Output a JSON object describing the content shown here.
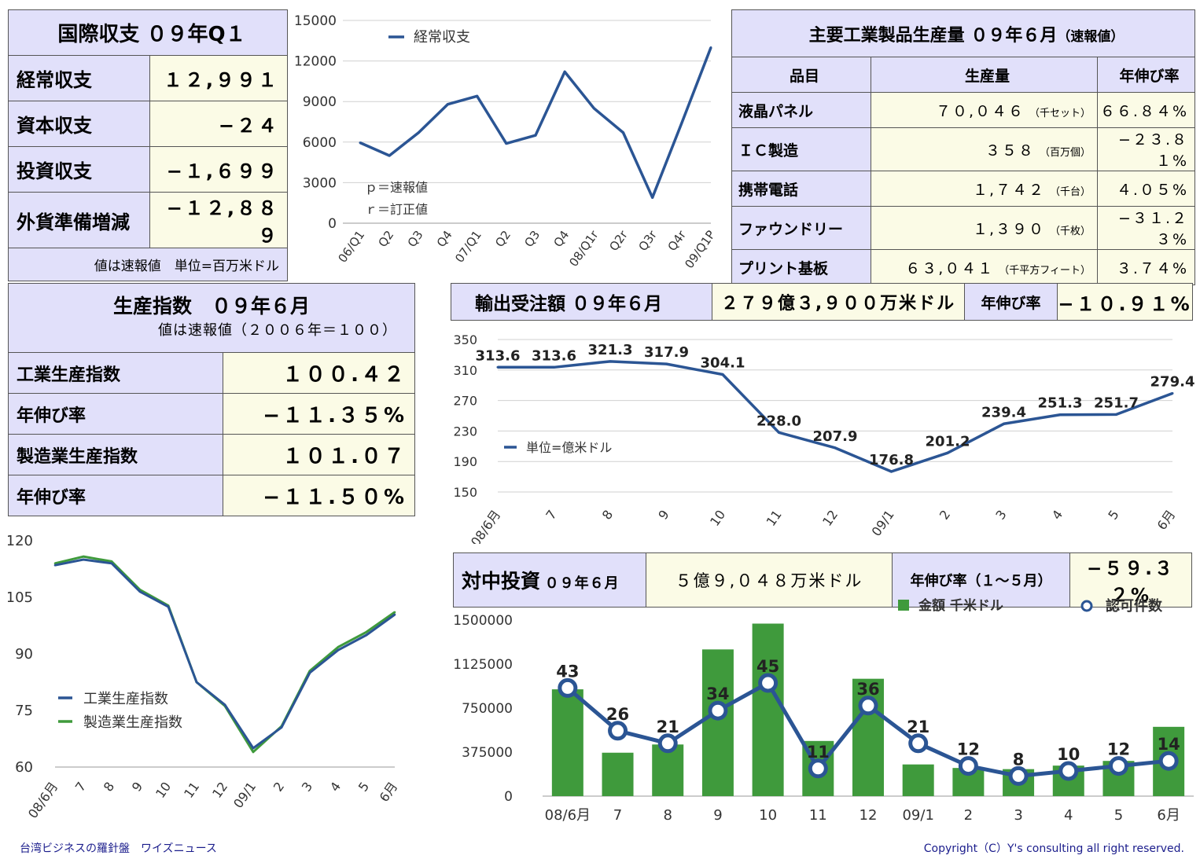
{
  "balance": {
    "title": "国際収支 ０９年Q１",
    "rows": [
      {
        "label": "経常収支",
        "value": "１２,９９１"
      },
      {
        "label": "資本収支",
        "value": "−２４"
      },
      {
        "label": "投資収支",
        "value": "−１,６９９"
      },
      {
        "label": "外貨準備増減",
        "value": "−１２,８８９"
      }
    ],
    "note": "値は速報値　単位=百万米ドル"
  },
  "industrial": {
    "title": "主要工業製品生産量 ０９年６月",
    "title_suffix": "（速報値）",
    "headers": [
      "品目",
      "生産量",
      "年伸び率"
    ],
    "rows": [
      {
        "item": "液晶パネル",
        "amount": "７０,０４６",
        "unit": "（千セット）",
        "growth": "６６.８４%"
      },
      {
        "item": "ＩＣ製造",
        "amount": "３５８",
        "unit": "（百万個）",
        "growth": "−２３.８１%"
      },
      {
        "item": "携帯電話",
        "amount": "１,７４２",
        "unit": "（千台）",
        "growth": "４.０５%"
      },
      {
        "item": "ファウンドリー",
        "amount": "１,３９０",
        "unit": "（千枚）",
        "growth": "−３１.２３%"
      },
      {
        "item": "プリント基板",
        "amount": "６３,０４１",
        "unit": "（千平方フィート）",
        "growth": "３.７４%"
      }
    ]
  },
  "production": {
    "title": "生産指数　０９年６月",
    "subtitle": "値は速報値（２００６年＝１００）",
    "rows": [
      {
        "label": "工業生産指数",
        "value": "１００.４２"
      },
      {
        "label": "年伸び率",
        "value": "−１１.３５%"
      },
      {
        "label": "製造業生産指数",
        "value": "１０１.０７"
      },
      {
        "label": "年伸び率",
        "value": "−１１.５０%"
      }
    ]
  },
  "export_header": {
    "label": "輸出受注額 ０９年６月",
    "amount": "２７９億３,９００万米ドル",
    "growth_label": "年伸び率",
    "growth": "−１０.９１%"
  },
  "invest_header": {
    "label": "対中投資",
    "label_suffix": "０９年６月",
    "amount": "５億９,０４８万米ドル",
    "growth_label": "年伸び率（１〜５月）",
    "growth": "−５９.３２%"
  },
  "footer": {
    "left": "台湾ビジネスの羅針盤　ワイズニュース",
    "right": "Copyright（C）Y's consulting all right reserved."
  },
  "colors": {
    "blue": "#2b5594",
    "green": "#3f9a3c",
    "header_bg": "#e1e0fa",
    "value_bg": "#fbfbe6"
  },
  "chart_data": [
    {
      "type": "line",
      "categories": [
        "06/Q1",
        "Q2",
        "Q3",
        "Q4",
        "07/Q1",
        "Q2",
        "Q3",
        "Q4",
        "08/Q1r",
        "Q2r",
        "Q3r",
        "Q4r",
        "09/Q1P"
      ],
      "series": [
        {
          "name": "経常収支",
          "values": [
            5950,
            5000,
            6700,
            8800,
            9400,
            5900,
            6500,
            11200,
            8500,
            6700,
            1900,
            7400,
            12991
          ]
        }
      ],
      "ylim": [
        0,
        15000
      ],
      "yticks": [
        0,
        3000,
        6000,
        9000,
        12000,
        15000
      ],
      "annotations": [
        "ｐ＝速報値",
        "ｒ＝訂正値"
      ],
      "grid": true,
      "legend": "top-left"
    },
    {
      "type": "line",
      "categories": [
        "08/6月",
        "7",
        "8",
        "9",
        "10",
        "11",
        "12",
        "09/1",
        "2",
        "3",
        "4",
        "5",
        "6月"
      ],
      "series": [
        {
          "name": "単位=億米ドル",
          "values": [
            313.6,
            313.6,
            321.3,
            317.9,
            304.1,
            228.0,
            207.9,
            176.8,
            201.2,
            239.4,
            251.3,
            251.7,
            279.4
          ]
        }
      ],
      "data_labels": [
        "313.6",
        "313.6",
        "321.3",
        "317.9",
        "304.1",
        "228.0",
        "207.9",
        "176.8",
        "201.2",
        "239.4",
        "251.3",
        "251.7",
        "279.4"
      ],
      "ylim": [
        150,
        350
      ],
      "yticks": [
        150,
        190,
        230,
        270,
        310,
        350
      ],
      "grid": true,
      "legend": "middle-left"
    },
    {
      "type": "line",
      "categories": [
        "08/6月",
        "7",
        "8",
        "9",
        "10",
        "11",
        "12",
        "09/1",
        "2",
        "3",
        "4",
        "5",
        "6月"
      ],
      "series": [
        {
          "name": "工業生産指数",
          "values": [
            113.5,
            115,
            114,
            106.5,
            102.5,
            82.5,
            76.5,
            65,
            70.5,
            85,
            91,
            95,
            100.42
          ]
        },
        {
          "name": "製造業生産指数",
          "values": [
            114,
            115.8,
            114.5,
            107,
            102.8,
            82.5,
            76.2,
            64,
            70.8,
            85.5,
            91.8,
            95.8,
            101.07
          ]
        }
      ],
      "ylim": [
        60,
        120
      ],
      "yticks": [
        60,
        75,
        90,
        105,
        120
      ],
      "grid": false,
      "legend": "middle-left"
    },
    {
      "type": "bar",
      "categories": [
        "08/6月",
        "7",
        "8",
        "9",
        "10",
        "11",
        "12",
        "09/1",
        "2",
        "3",
        "4",
        "5",
        "6月"
      ],
      "series": [
        {
          "name": "金額 千米ドル",
          "values": [
            910000,
            370000,
            440000,
            1250000,
            1470000,
            470000,
            1000000,
            270000,
            240000,
            230000,
            260000,
            300000,
            590480
          ]
        },
        {
          "name": "認可件数",
          "type": "line",
          "values": [
            43,
            26,
            21,
            34,
            45,
            11,
            36,
            21,
            12,
            8,
            10,
            12,
            14
          ]
        }
      ],
      "ylim": [
        0,
        1500000
      ],
      "yticks": [
        0,
        375000,
        750000,
        1125000,
        1500000
      ],
      "legend": "top-right"
    }
  ]
}
